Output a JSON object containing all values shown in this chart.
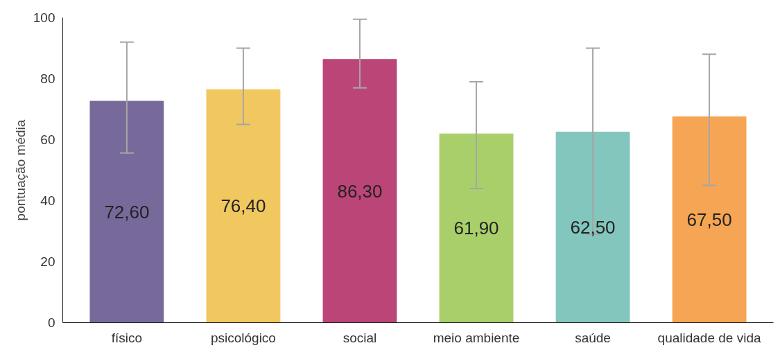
{
  "chart_data": {
    "type": "bar",
    "ylabel": "pontuação média",
    "categories": [
      "físico",
      "psicológico",
      "social",
      "meio ambiente",
      "saúde",
      "qualidade de vida"
    ],
    "values": [
      72.6,
      76.4,
      86.3,
      61.9,
      62.5,
      67.5
    ],
    "colors": [
      "#776a9b",
      "#f1c75f",
      "#bc4577",
      "#a9cf6a",
      "#83c6bd",
      "#f5a553"
    ],
    "value_labels": [
      "72,60",
      "76,40",
      "86,30",
      "61,90",
      "62,50",
      "67,50"
    ],
    "errors": [
      [
        55.6,
        92
      ],
      [
        65,
        90
      ],
      [
        77,
        99.5
      ],
      [
        44,
        79
      ],
      [
        29,
        90
      ],
      [
        45,
        88
      ]
    ],
    "ylim": [
      0,
      100
    ],
    "yticks": [
      0,
      20,
      40,
      60,
      80,
      100
    ],
    "grid": false
  }
}
